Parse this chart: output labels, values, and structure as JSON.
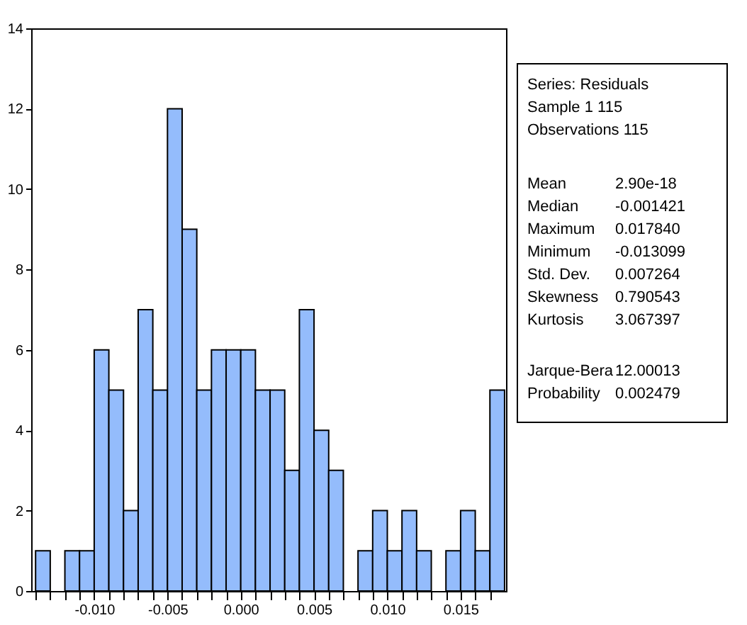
{
  "chart_data": {
    "type": "histogram",
    "bins": [
      -0.014,
      -0.013,
      -0.012,
      -0.011,
      -0.01,
      -0.009,
      -0.008,
      -0.007,
      -0.006,
      -0.005,
      -0.004,
      -0.003,
      -0.002,
      -0.001,
      0.0,
      0.001,
      0.002,
      0.003,
      0.004,
      0.005,
      0.006,
      0.007,
      0.008,
      0.009,
      0.01,
      0.011,
      0.012,
      0.013,
      0.014,
      0.015,
      0.016,
      0.017,
      0.018
    ],
    "values": [
      1,
      0,
      1,
      1,
      6,
      5,
      2,
      7,
      5,
      12,
      9,
      5,
      6,
      6,
      6,
      5,
      5,
      3,
      7,
      4,
      3,
      0,
      1,
      2,
      1,
      2,
      1,
      0,
      1,
      2,
      1,
      5
    ],
    "color": "#94bcfc",
    "xlim": [
      -0.0143,
      0.0181
    ],
    "xticks": [
      {
        "value": -0.014,
        "label": null
      },
      {
        "value": -0.013,
        "label": null
      },
      {
        "value": -0.012,
        "label": null
      },
      {
        "value": -0.011,
        "label": null
      },
      {
        "value": -0.01,
        "label": "-0.010"
      },
      {
        "value": -0.009,
        "label": null
      },
      {
        "value": -0.008,
        "label": null
      },
      {
        "value": -0.007,
        "label": null
      },
      {
        "value": -0.006,
        "label": null
      },
      {
        "value": -0.005,
        "label": "-0.005"
      },
      {
        "value": -0.004,
        "label": null
      },
      {
        "value": -0.003,
        "label": null
      },
      {
        "value": -0.002,
        "label": null
      },
      {
        "value": -0.001,
        "label": null
      },
      {
        "value": 0.0,
        "label": "0.000"
      },
      {
        "value": 0.001,
        "label": null
      },
      {
        "value": 0.002,
        "label": null
      },
      {
        "value": 0.003,
        "label": null
      },
      {
        "value": 0.004,
        "label": null
      },
      {
        "value": 0.005,
        "label": "0.005"
      },
      {
        "value": 0.006,
        "label": null
      },
      {
        "value": 0.007,
        "label": null
      },
      {
        "value": 0.008,
        "label": null
      },
      {
        "value": 0.009,
        "label": null
      },
      {
        "value": 0.01,
        "label": "0.010"
      },
      {
        "value": 0.011,
        "label": null
      },
      {
        "value": 0.012,
        "label": null
      },
      {
        "value": 0.013,
        "label": null
      },
      {
        "value": 0.014,
        "label": null
      },
      {
        "value": 0.015,
        "label": "0.015"
      },
      {
        "value": 0.016,
        "label": null
      },
      {
        "value": 0.017,
        "label": null
      }
    ],
    "ylim": [
      0,
      14
    ],
    "yticks": [
      0,
      2,
      4,
      6,
      8,
      10,
      12,
      14
    ],
    "grid": false,
    "annotations": [
      "Series: Residuals",
      "Sample 1 115",
      "Observations 115",
      "Mean",
      "2.90e-18",
      "Median",
      "-0.001421",
      "Maximum",
      "0.017840",
      "Minimum",
      "-0.013099",
      "Std. Dev.",
      "0.007264",
      "Skewness",
      "0.790543",
      "Kurtosis",
      "3.067397",
      "Jarque-Bera",
      "12.00013",
      "Probability",
      "0.002479"
    ]
  }
}
